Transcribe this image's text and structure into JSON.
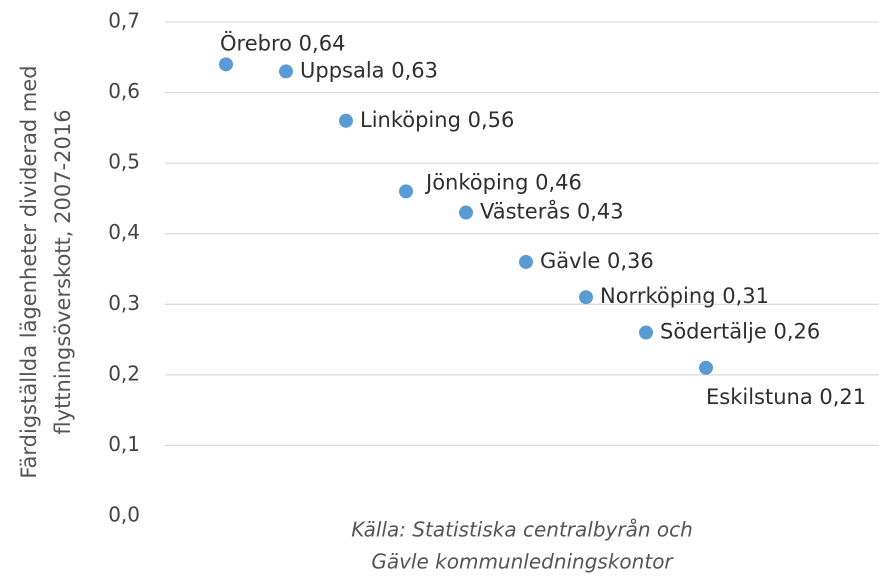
{
  "chart_data": {
    "type": "scatter",
    "categories": [
      "Örebro",
      "Uppsala",
      "Linköping",
      "Jönköping",
      "Västerås",
      "Gävle",
      "Norrköping",
      "Södertälje",
      "Eskilstuna"
    ],
    "values": [
      0.64,
      0.63,
      0.56,
      0.46,
      0.43,
      0.36,
      0.31,
      0.26,
      0.21
    ],
    "value_labels": [
      "0,64",
      "0,63",
      "0,56",
      "0,46",
      "0,43",
      "0,36",
      "0,31",
      "0,26",
      "0,21"
    ],
    "color": "#5b9bd5",
    "y_label": [
      "Färdigställda lägenheter dividerad med",
      "flyttningsöverskott,  2007-2016"
    ],
    "annotation": [
      "Källa: Statistiska centralbyrån och",
      "Gävle kommunledningskontor"
    ],
    "ylim": [
      0,
      0.7
    ],
    "yticks": [
      {
        "value": 0,
        "label": "0,0"
      },
      {
        "value": 0.1,
        "label": "0,1"
      },
      {
        "value": 0.2,
        "label": "0,2"
      },
      {
        "value": 0.3,
        "label": "0,3"
      },
      {
        "value": 0.4,
        "label": "0,4"
      },
      {
        "value": 0.5,
        "label": "0,5"
      },
      {
        "value": 0.6,
        "label": "0,6"
      },
      {
        "value": 0.7,
        "label": "0,7"
      }
    ],
    "grid": true
  }
}
